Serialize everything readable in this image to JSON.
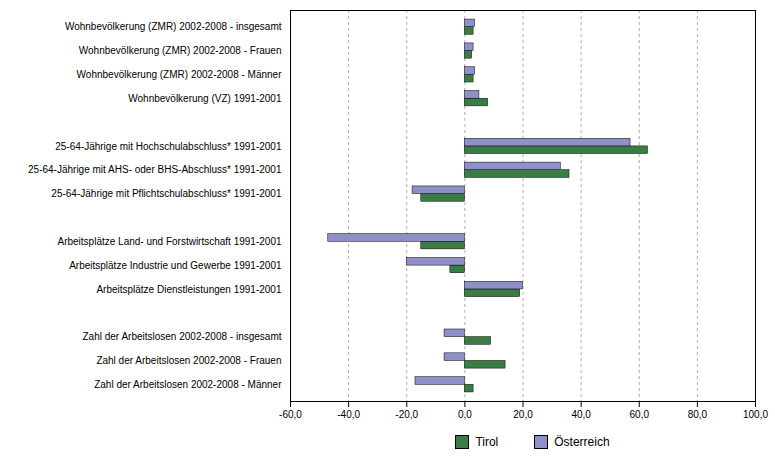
{
  "chart_data": {
    "type": "bar",
    "orientation": "horizontal",
    "categories": [
      "Wohnbevölkerung (ZMR) 2002-2008 - insgesamt",
      "Wohnbevölkerung (ZMR) 2002-2008 - Frauen",
      "Wohnbevölkerung (ZMR) 2002-2008 - Männer",
      "Wohnbevölkerung (VZ) 1991-2001",
      null,
      "25-64-Jährige mit Hochschulabschluss* 1991-2001",
      "25-64-Jährige mit AHS- oder BHS-Abschluss* 1991-2001",
      "25-64-Jährige mit Pflichtschulabschluss* 1991-2001",
      null,
      "Arbeitsplätze Land- und Forstwirtschaft 1991-2001",
      "Arbeitsplätze Industrie und Gewerbe 1991-2001",
      "Arbeitsplätze Dienstleistungen 1991-2001",
      null,
      "Zahl der Arbeitslosen 2002-2008 - insgesamt",
      "Zahl der Arbeitslosen 2002-2008 - Frauen",
      "Zahl der Arbeitslosen 2002-2008 - Männer"
    ],
    "series": [
      {
        "name": "Tirol",
        "color": "#3a7d44",
        "values": [
          3.0,
          2.5,
          3.0,
          8.0,
          null,
          63.0,
          36.0,
          -15.0,
          null,
          -15.0,
          -5.0,
          19.0,
          null,
          9.0,
          14.0,
          3.0
        ]
      },
      {
        "name": "Österreich",
        "color": "#9090c8",
        "values": [
          3.5,
          3.0,
          3.5,
          5.0,
          null,
          57.0,
          33.0,
          -18.0,
          null,
          -47.0,
          -20.0,
          20.0,
          null,
          -7.0,
          -7.0,
          -17.0
        ]
      }
    ],
    "xlim": [
      -60,
      100
    ],
    "xticks": [
      {
        "value": -60,
        "label": "-60,0"
      },
      {
        "value": -40,
        "label": "-40,0"
      },
      {
        "value": -20,
        "label": "-20,0"
      },
      {
        "value": 0,
        "label": "0,0"
      },
      {
        "value": 20,
        "label": "20,0"
      },
      {
        "value": 40,
        "label": "40,0"
      },
      {
        "value": 60,
        "label": "60,0"
      },
      {
        "value": 80,
        "label": "80,0"
      },
      {
        "value": 100,
        "label": "100,0"
      }
    ],
    "grid": true,
    "legend": "bottom"
  }
}
